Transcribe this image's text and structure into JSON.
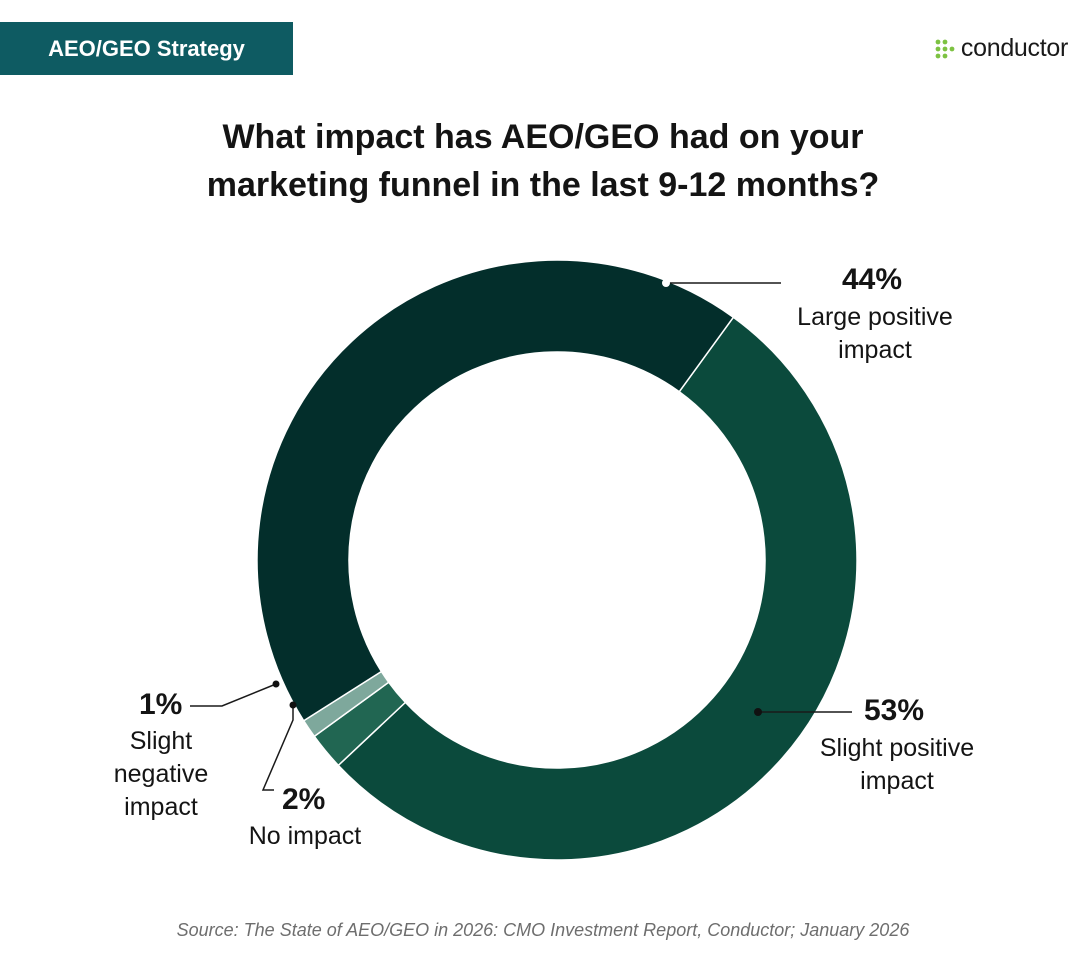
{
  "header": {
    "tag_label": "AEO/GEO Strategy",
    "logo_text": "conductor"
  },
  "chart_data": {
    "type": "pie",
    "style": "donut",
    "title_lines": [
      "What impact has AEO/GEO had on your",
      "marketing funnel in the last 9-12 months?"
    ],
    "start_slice": "Slight positive impact",
    "slices": [
      {
        "label": "Slight positive impact",
        "value": 53,
        "pct_label": "53%",
        "color": "#0b4a3c"
      },
      {
        "label": "No impact",
        "value": 2,
        "pct_label": "2%",
        "color": "#216652"
      },
      {
        "label": "Slight negative impact",
        "value": 1,
        "pct_label": "1%",
        "color": "#7ea89c"
      },
      {
        "label": "Large positive impact",
        "value": 44,
        "pct_label": "44%",
        "color": "#032e2b"
      }
    ]
  },
  "labels": {
    "large_positive": {
      "pct": "44%",
      "text": "Large positive\nimpact"
    },
    "slight_positive": {
      "pct": "53%",
      "text": "Slight positive\nimpact"
    },
    "no_impact": {
      "pct": "2%",
      "text": "No impact"
    },
    "slight_negative": {
      "pct": "1%",
      "text": "Slight\nnegative\nimpact"
    }
  },
  "colors": {
    "tag_background": "#0e5b62",
    "logo_accent": "#7dc242"
  },
  "source": "Source: The State of AEO/GEO in 2026: CMO Investment Report, Conductor; January 2026"
}
